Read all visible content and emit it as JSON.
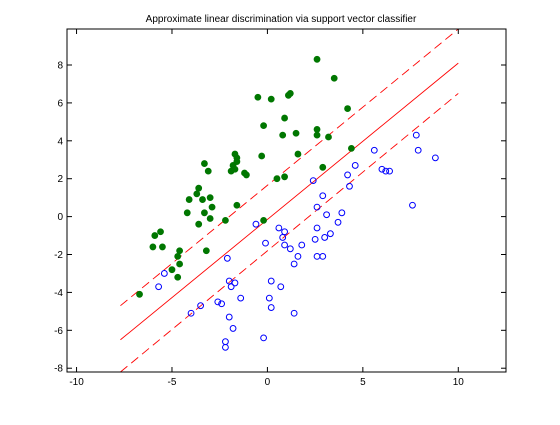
{
  "chart_data": {
    "type": "scatter",
    "title": "Approximate linear discrimination via support vector classifier",
    "xlabel": "",
    "ylabel": "",
    "xlim": [
      -10.5,
      12.5
    ],
    "ylim": [
      -8.2,
      9.9
    ],
    "xticks": [
      -10,
      -5,
      0,
      5,
      10
    ],
    "yticks": [
      -8,
      -6,
      -4,
      -2,
      0,
      2,
      4,
      6,
      8
    ],
    "grid": false,
    "colors": {
      "class1": "#007700",
      "class2": "#0000ff",
      "boundary": "#ff0000"
    },
    "series": [
      {
        "marker": "filled-circle",
        "color": "#007700",
        "points": [
          [
            2.6,
            8.3
          ],
          [
            3.5,
            7.3
          ],
          [
            1.2,
            6.5
          ],
          [
            1.1,
            6.4
          ],
          [
            -0.5,
            6.3
          ],
          [
            0.2,
            6.2
          ],
          [
            4.2,
            5.7
          ],
          [
            0.9,
            5.2
          ],
          [
            -0.2,
            4.8
          ],
          [
            2.6,
            4.6
          ],
          [
            1.5,
            4.4
          ],
          [
            2.6,
            4.3
          ],
          [
            0.8,
            4.3
          ],
          [
            3.2,
            4.2
          ],
          [
            -0.3,
            3.2
          ],
          [
            1.6,
            3.3
          ],
          [
            -1.7,
            3.3
          ],
          [
            -1.6,
            3.1
          ],
          [
            -1.6,
            2.9
          ],
          [
            -3.3,
            2.8
          ],
          [
            -1.8,
            2.7
          ],
          [
            -1.7,
            2.5
          ],
          [
            -3.1,
            2.4
          ],
          [
            -1.9,
            2.4
          ],
          [
            -1.2,
            2.3
          ],
          [
            -1.1,
            2.2
          ],
          [
            0.9,
            2.1
          ],
          [
            0.5,
            2.0
          ],
          [
            -3.6,
            1.5
          ],
          [
            -3.7,
            1.2
          ],
          [
            -3.0,
            1.0
          ],
          [
            -4.1,
            0.9
          ],
          [
            -3.4,
            0.9
          ],
          [
            -1.6,
            0.6
          ],
          [
            -2.9,
            0.5
          ],
          [
            -4.2,
            0.2
          ],
          [
            -3.3,
            0.2
          ],
          [
            -2.2,
            -0.2
          ],
          [
            -3.0,
            -0.1
          ],
          [
            -3.6,
            -0.4
          ],
          [
            -5.6,
            -0.8
          ],
          [
            -5.9,
            -1.0
          ],
          [
            -6.0,
            -1.6
          ],
          [
            -5.5,
            -1.6
          ],
          [
            -4.6,
            -1.8
          ],
          [
            -3.2,
            -1.8
          ],
          [
            -4.7,
            -2.1
          ],
          [
            -4.6,
            -2.5
          ],
          [
            -4.7,
            -3.2
          ],
          [
            -6.7,
            -4.1
          ],
          [
            4.4,
            3.6
          ],
          [
            -0.2,
            -0.2
          ],
          [
            2.9,
            2.6
          ],
          [
            -5.0,
            -2.8
          ]
        ]
      },
      {
        "marker": "open-circle",
        "color": "#0000ff",
        "points": [
          [
            7.8,
            4.3
          ],
          [
            5.6,
            3.5
          ],
          [
            7.9,
            3.5
          ],
          [
            8.8,
            3.1
          ],
          [
            4.6,
            2.7
          ],
          [
            6.0,
            2.5
          ],
          [
            6.2,
            2.4
          ],
          [
            6.4,
            2.4
          ],
          [
            2.4,
            1.9
          ],
          [
            4.3,
            1.6
          ],
          [
            2.9,
            1.1
          ],
          [
            2.6,
            0.5
          ],
          [
            3.1,
            0.1
          ],
          [
            3.9,
            0.2
          ],
          [
            7.6,
            0.6
          ],
          [
            3.7,
            -0.3
          ],
          [
            2.6,
            -0.6
          ],
          [
            0.6,
            -0.6
          ],
          [
            0.9,
            -0.8
          ],
          [
            3.3,
            -0.9
          ],
          [
            0.8,
            -1.1
          ],
          [
            2.5,
            -1.2
          ],
          [
            3.0,
            -1.1
          ],
          [
            -0.6,
            -0.4
          ],
          [
            -0.1,
            -1.4
          ],
          [
            1.8,
            -1.5
          ],
          [
            0.9,
            -1.5
          ],
          [
            1.2,
            -1.7
          ],
          [
            1.6,
            -2.1
          ],
          [
            2.6,
            -2.1
          ],
          [
            2.9,
            -2.1
          ],
          [
            -2.1,
            -2.2
          ],
          [
            1.4,
            -2.5
          ],
          [
            -5.4,
            -3.0
          ],
          [
            -2.0,
            -3.4
          ],
          [
            0.2,
            -3.4
          ],
          [
            -1.7,
            -3.5
          ],
          [
            -1.9,
            -3.7
          ],
          [
            0.7,
            -3.7
          ],
          [
            -5.7,
            -3.7
          ],
          [
            -1.4,
            -4.3
          ],
          [
            0.1,
            -4.3
          ],
          [
            -2.6,
            -4.5
          ],
          [
            -2.4,
            -4.6
          ],
          [
            -3.5,
            -4.7
          ],
          [
            0.2,
            -4.8
          ],
          [
            -4.0,
            -5.1
          ],
          [
            1.4,
            -5.1
          ],
          [
            -2.0,
            -5.3
          ],
          [
            -1.8,
            -5.9
          ],
          [
            -0.2,
            -6.4
          ],
          [
            -2.2,
            -6.6
          ],
          [
            -2.2,
            -6.9
          ],
          [
            4.2,
            2.2
          ]
        ]
      }
    ],
    "lines": [
      {
        "style": "solid",
        "color": "#ff0000",
        "x": [
          -7.7,
          10.0
        ],
        "y": [
          -6.5,
          8.1
        ]
      },
      {
        "style": "dashed",
        "color": "#ff0000",
        "x": [
          -7.7,
          10.0
        ],
        "y": [
          -4.7,
          9.9
        ]
      },
      {
        "style": "dashed",
        "color": "#ff0000",
        "x": [
          -7.7,
          10.0
        ],
        "y": [
          -8.2,
          6.5
        ]
      }
    ]
  }
}
